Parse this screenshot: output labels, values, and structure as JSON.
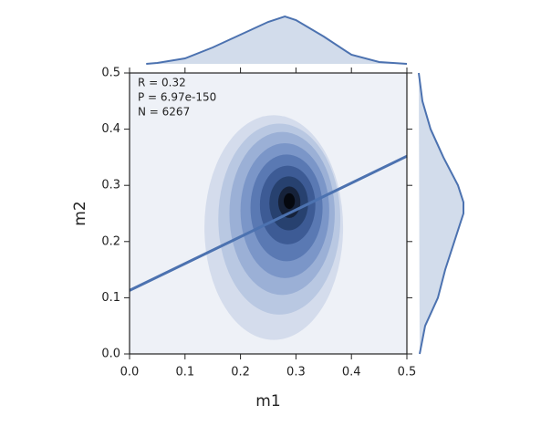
{
  "chart_data": {
    "type": "jointkde",
    "x_label": "m1",
    "y_label": "m2",
    "annotations": [
      "R = 0.32",
      "P = 6.97e-150",
      "N = 6267"
    ],
    "xlim": [
      0,
      0.5
    ],
    "ylim": [
      0,
      0.5
    ],
    "xticks": [
      {
        "value": 0,
        "label": "0.0"
      },
      0.1,
      0.2,
      0.3,
      0.4,
      0.5
    ],
    "yticks": [
      {
        "value": 0,
        "label": "0.0"
      },
      0.1,
      0.2,
      0.3,
      0.4,
      0.5
    ],
    "color": "#4c72b0",
    "background": "#eef1f7",
    "contours": [
      {
        "cx": 0.26,
        "cy": 0.225,
        "rx": 0.125,
        "ry": 0.2,
        "color": "#d4dcec"
      },
      {
        "cx": 0.27,
        "cy": 0.24,
        "rx": 0.11,
        "ry": 0.17,
        "color": "#b9c8e2"
      },
      {
        "cx": 0.275,
        "cy": 0.25,
        "rx": 0.095,
        "ry": 0.145,
        "color": "#9bb0d6"
      },
      {
        "cx": 0.28,
        "cy": 0.255,
        "rx": 0.08,
        "ry": 0.12,
        "color": "#7b96c8"
      },
      {
        "cx": 0.283,
        "cy": 0.26,
        "rx": 0.065,
        "ry": 0.095,
        "color": "#5a79b3"
      },
      {
        "cx": 0.285,
        "cy": 0.265,
        "rx": 0.05,
        "ry": 0.07,
        "color": "#3d5b95"
      },
      {
        "cx": 0.287,
        "cy": 0.268,
        "rx": 0.035,
        "ry": 0.048,
        "color": "#27416f"
      },
      {
        "cx": 0.288,
        "cy": 0.27,
        "rx": 0.02,
        "ry": 0.028,
        "color": "#16223a"
      },
      {
        "cx": 0.288,
        "cy": 0.272,
        "rx": 0.01,
        "ry": 0.014,
        "color": "#05080f"
      }
    ],
    "regression": {
      "x": [
        0,
        0.5
      ],
      "y": [
        0.113,
        0.352
      ]
    },
    "marginal_x": {
      "x": [
        0.03,
        0.05,
        0.1,
        0.15,
        0.2,
        0.25,
        0.28,
        0.3,
        0.35,
        0.4,
        0.45,
        0.5
      ],
      "density": [
        0,
        1,
        6,
        18,
        32,
        46,
        52,
        48,
        30,
        10,
        2,
        0
      ]
    },
    "marginal_y": {
      "y": [
        0,
        0.05,
        0.1,
        0.15,
        0.2,
        0.25,
        0.27,
        0.3,
        0.35,
        0.4,
        0.45,
        0.5
      ],
      "density": [
        2,
        8,
        22,
        30,
        40,
        50,
        50,
        44,
        28,
        14,
        5,
        1
      ]
    }
  }
}
